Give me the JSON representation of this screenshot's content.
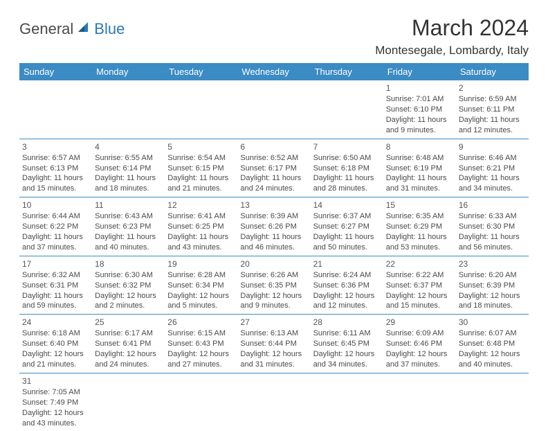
{
  "logo": {
    "text1": "General",
    "text2": "Blue",
    "color_general": "#4a4a4a",
    "color_blue": "#2a7ab8",
    "sail_color": "#2a7ab8"
  },
  "title": "March 2024",
  "location": "Montesegale, Lombardy, Italy",
  "header_bg": "#3b8bc4",
  "day_headers": [
    "Sunday",
    "Monday",
    "Tuesday",
    "Wednesday",
    "Thursday",
    "Friday",
    "Saturday"
  ],
  "weeks": [
    [
      null,
      null,
      null,
      null,
      null,
      {
        "num": "1",
        "sunrise": "Sunrise: 7:01 AM",
        "sunset": "Sunset: 6:10 PM",
        "daylight": "Daylight: 11 hours and 9 minutes."
      },
      {
        "num": "2",
        "sunrise": "Sunrise: 6:59 AM",
        "sunset": "Sunset: 6:11 PM",
        "daylight": "Daylight: 11 hours and 12 minutes."
      }
    ],
    [
      {
        "num": "3",
        "sunrise": "Sunrise: 6:57 AM",
        "sunset": "Sunset: 6:13 PM",
        "daylight": "Daylight: 11 hours and 15 minutes."
      },
      {
        "num": "4",
        "sunrise": "Sunrise: 6:55 AM",
        "sunset": "Sunset: 6:14 PM",
        "daylight": "Daylight: 11 hours and 18 minutes."
      },
      {
        "num": "5",
        "sunrise": "Sunrise: 6:54 AM",
        "sunset": "Sunset: 6:15 PM",
        "daylight": "Daylight: 11 hours and 21 minutes."
      },
      {
        "num": "6",
        "sunrise": "Sunrise: 6:52 AM",
        "sunset": "Sunset: 6:17 PM",
        "daylight": "Daylight: 11 hours and 24 minutes."
      },
      {
        "num": "7",
        "sunrise": "Sunrise: 6:50 AM",
        "sunset": "Sunset: 6:18 PM",
        "daylight": "Daylight: 11 hours and 28 minutes."
      },
      {
        "num": "8",
        "sunrise": "Sunrise: 6:48 AM",
        "sunset": "Sunset: 6:19 PM",
        "daylight": "Daylight: 11 hours and 31 minutes."
      },
      {
        "num": "9",
        "sunrise": "Sunrise: 6:46 AM",
        "sunset": "Sunset: 6:21 PM",
        "daylight": "Daylight: 11 hours and 34 minutes."
      }
    ],
    [
      {
        "num": "10",
        "sunrise": "Sunrise: 6:44 AM",
        "sunset": "Sunset: 6:22 PM",
        "daylight": "Daylight: 11 hours and 37 minutes."
      },
      {
        "num": "11",
        "sunrise": "Sunrise: 6:43 AM",
        "sunset": "Sunset: 6:23 PM",
        "daylight": "Daylight: 11 hours and 40 minutes."
      },
      {
        "num": "12",
        "sunrise": "Sunrise: 6:41 AM",
        "sunset": "Sunset: 6:25 PM",
        "daylight": "Daylight: 11 hours and 43 minutes."
      },
      {
        "num": "13",
        "sunrise": "Sunrise: 6:39 AM",
        "sunset": "Sunset: 6:26 PM",
        "daylight": "Daylight: 11 hours and 46 minutes."
      },
      {
        "num": "14",
        "sunrise": "Sunrise: 6:37 AM",
        "sunset": "Sunset: 6:27 PM",
        "daylight": "Daylight: 11 hours and 50 minutes."
      },
      {
        "num": "15",
        "sunrise": "Sunrise: 6:35 AM",
        "sunset": "Sunset: 6:29 PM",
        "daylight": "Daylight: 11 hours and 53 minutes."
      },
      {
        "num": "16",
        "sunrise": "Sunrise: 6:33 AM",
        "sunset": "Sunset: 6:30 PM",
        "daylight": "Daylight: 11 hours and 56 minutes."
      }
    ],
    [
      {
        "num": "17",
        "sunrise": "Sunrise: 6:32 AM",
        "sunset": "Sunset: 6:31 PM",
        "daylight": "Daylight: 11 hours and 59 minutes."
      },
      {
        "num": "18",
        "sunrise": "Sunrise: 6:30 AM",
        "sunset": "Sunset: 6:32 PM",
        "daylight": "Daylight: 12 hours and 2 minutes."
      },
      {
        "num": "19",
        "sunrise": "Sunrise: 6:28 AM",
        "sunset": "Sunset: 6:34 PM",
        "daylight": "Daylight: 12 hours and 5 minutes."
      },
      {
        "num": "20",
        "sunrise": "Sunrise: 6:26 AM",
        "sunset": "Sunset: 6:35 PM",
        "daylight": "Daylight: 12 hours and 9 minutes."
      },
      {
        "num": "21",
        "sunrise": "Sunrise: 6:24 AM",
        "sunset": "Sunset: 6:36 PM",
        "daylight": "Daylight: 12 hours and 12 minutes."
      },
      {
        "num": "22",
        "sunrise": "Sunrise: 6:22 AM",
        "sunset": "Sunset: 6:37 PM",
        "daylight": "Daylight: 12 hours and 15 minutes."
      },
      {
        "num": "23",
        "sunrise": "Sunrise: 6:20 AM",
        "sunset": "Sunset: 6:39 PM",
        "daylight": "Daylight: 12 hours and 18 minutes."
      }
    ],
    [
      {
        "num": "24",
        "sunrise": "Sunrise: 6:18 AM",
        "sunset": "Sunset: 6:40 PM",
        "daylight": "Daylight: 12 hours and 21 minutes."
      },
      {
        "num": "25",
        "sunrise": "Sunrise: 6:17 AM",
        "sunset": "Sunset: 6:41 PM",
        "daylight": "Daylight: 12 hours and 24 minutes."
      },
      {
        "num": "26",
        "sunrise": "Sunrise: 6:15 AM",
        "sunset": "Sunset: 6:43 PM",
        "daylight": "Daylight: 12 hours and 27 minutes."
      },
      {
        "num": "27",
        "sunrise": "Sunrise: 6:13 AM",
        "sunset": "Sunset: 6:44 PM",
        "daylight": "Daylight: 12 hours and 31 minutes."
      },
      {
        "num": "28",
        "sunrise": "Sunrise: 6:11 AM",
        "sunset": "Sunset: 6:45 PM",
        "daylight": "Daylight: 12 hours and 34 minutes."
      },
      {
        "num": "29",
        "sunrise": "Sunrise: 6:09 AM",
        "sunset": "Sunset: 6:46 PM",
        "daylight": "Daylight: 12 hours and 37 minutes."
      },
      {
        "num": "30",
        "sunrise": "Sunrise: 6:07 AM",
        "sunset": "Sunset: 6:48 PM",
        "daylight": "Daylight: 12 hours and 40 minutes."
      }
    ],
    [
      {
        "num": "31",
        "sunrise": "Sunrise: 7:05 AM",
        "sunset": "Sunset: 7:49 PM",
        "daylight": "Daylight: 12 hours and 43 minutes."
      },
      null,
      null,
      null,
      null,
      null,
      null
    ]
  ]
}
